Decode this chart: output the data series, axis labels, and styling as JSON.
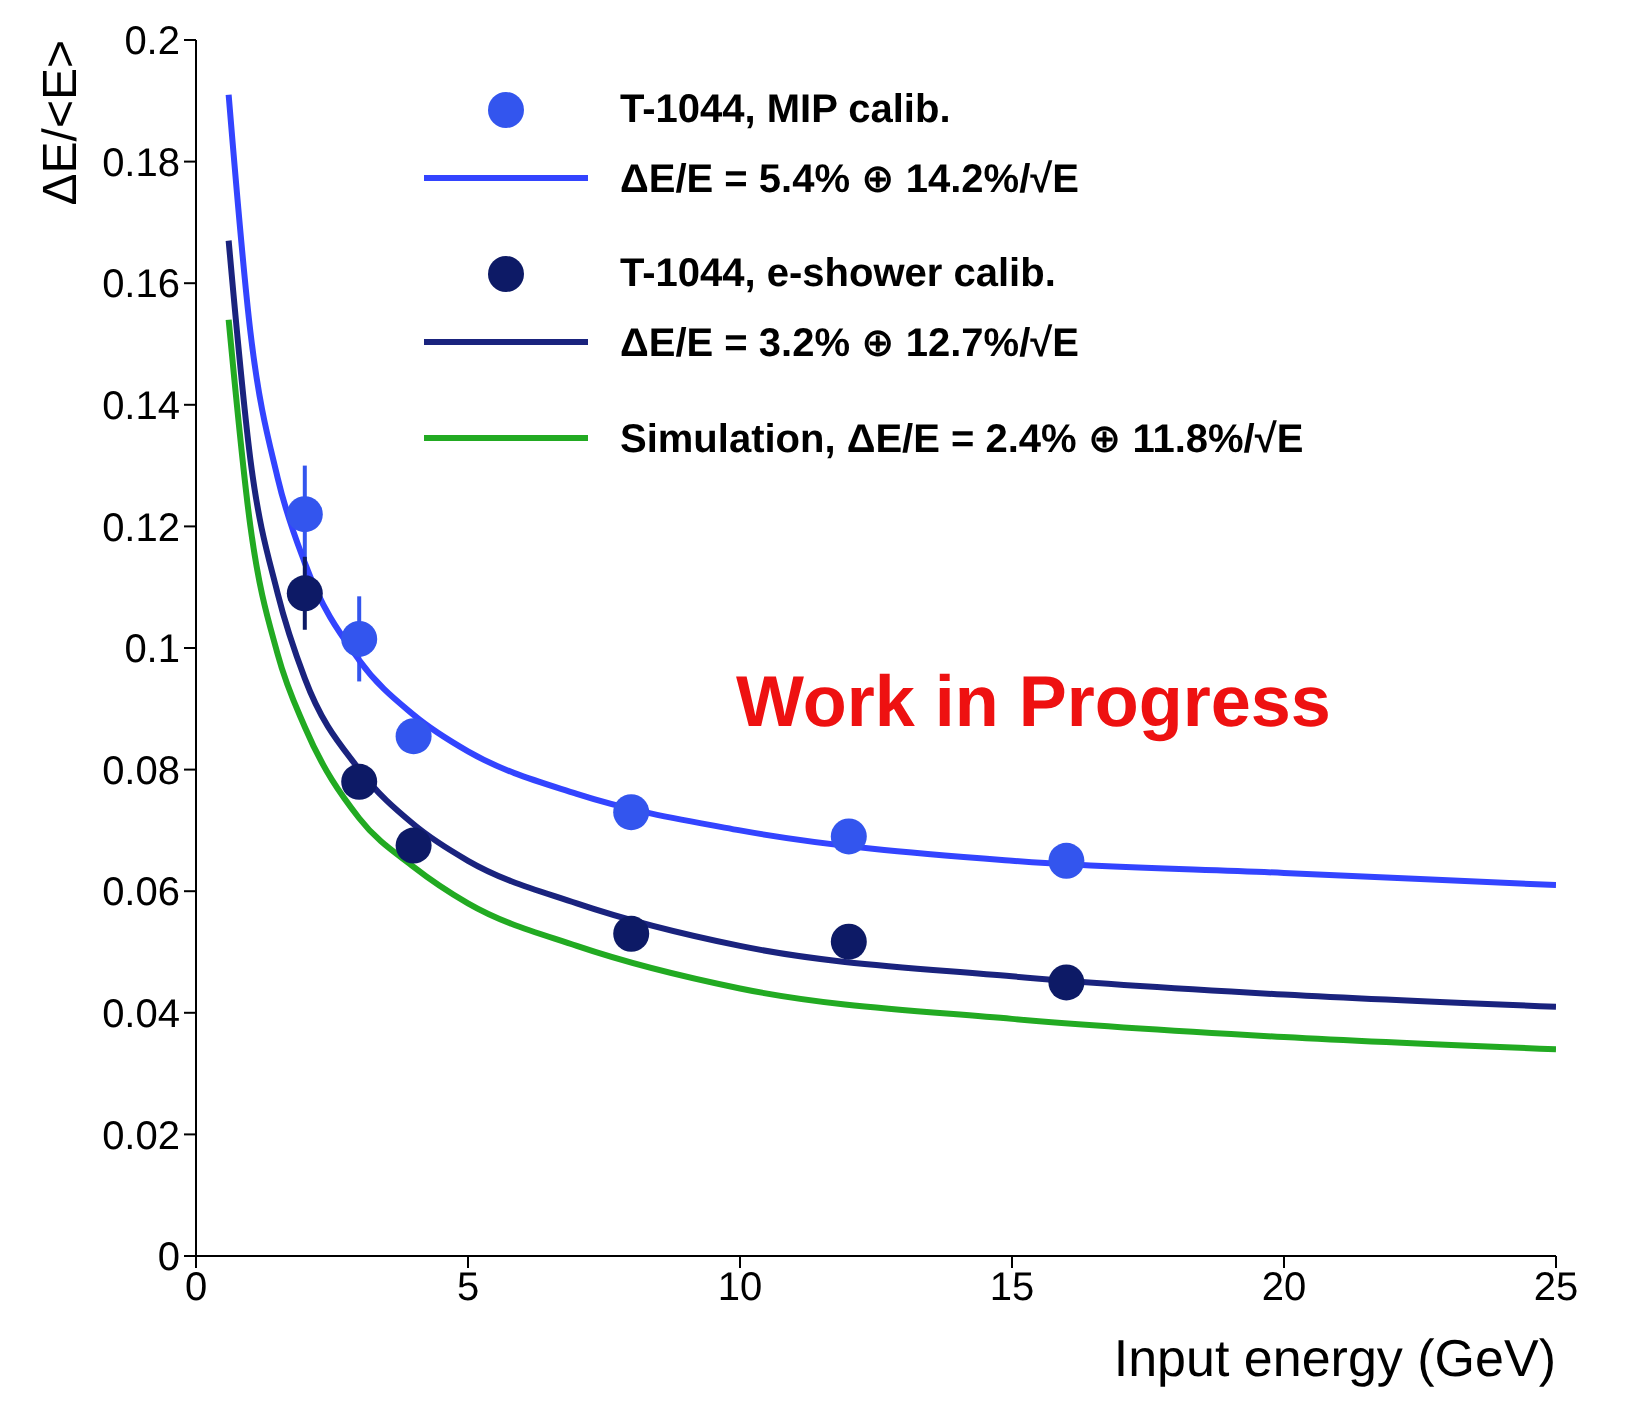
{
  "chart_data": {
    "type": "line",
    "xlabel": "Input energy (GeV)",
    "ylabel": "ΔE/<E>",
    "xlim": [
      0,
      25
    ],
    "xticks": [
      0,
      5,
      10,
      15,
      20,
      25
    ],
    "ylim": [
      0,
      0.2
    ],
    "yticks": [
      0,
      0.02,
      0.04,
      0.06,
      0.08,
      0.1,
      0.12,
      0.14,
      0.16,
      0.18,
      0.2
    ],
    "grid": false,
    "legend": "top right",
    "line_style": "solid",
    "annotations": [
      "Work in Progress"
    ],
    "series": [
      {
        "type": "scatter",
        "marker": "circle",
        "name": "T-1044, MIP calib.",
        "color": "#3355ee",
        "x": [
          2,
          3,
          4,
          8,
          12,
          16
        ],
        "values": [
          0.122,
          0.1015,
          0.0855,
          0.073,
          0.069,
          0.065
        ],
        "errors": [
          0.008,
          0.007,
          null,
          null,
          null,
          null
        ]
      },
      {
        "name": "ΔE/E = 5.4% ⊕ 14.2%/√E",
        "color": "#3344ff",
        "x": [
          0.6,
          1,
          1.5,
          2,
          3,
          4,
          5,
          7,
          10,
          15,
          20,
          25
        ],
        "values": [
          0.191,
          0.152,
          0.128,
          0.114,
          0.098,
          0.089,
          0.083,
          0.076,
          0.07,
          0.065,
          0.063,
          0.061
        ]
      },
      {
        "type": "scatter",
        "marker": "circle",
        "name": "T-1044, e-shower calib.",
        "color": "#0d1a66",
        "x": [
          2,
          3,
          4,
          8,
          12,
          16
        ],
        "values": [
          0.109,
          0.078,
          0.0675,
          0.053,
          0.0517,
          0.045
        ],
        "errors": [
          0.006,
          null,
          null,
          null,
          null,
          null
        ]
      },
      {
        "name": "ΔE/E = 3.2% ⊕ 12.7%/√E",
        "color": "#1a237e",
        "x": [
          0.6,
          1,
          1.5,
          2,
          3,
          4,
          5,
          7,
          10,
          15,
          20,
          25
        ],
        "values": [
          0.167,
          0.131,
          0.109,
          0.095,
          0.08,
          0.071,
          0.065,
          0.058,
          0.051,
          0.046,
          0.043,
          0.041
        ]
      },
      {
        "name": "Simulation, ΔE/E = 2.4% ⊕ 11.8%/√E",
        "color": "#22aa22",
        "x": [
          0.6,
          1,
          1.5,
          2,
          3,
          4,
          5,
          7,
          10,
          15,
          20,
          25
        ],
        "values": [
          0.154,
          0.12,
          0.099,
          0.087,
          0.072,
          0.064,
          0.058,
          0.051,
          0.044,
          0.039,
          0.036,
          0.034
        ]
      }
    ]
  }
}
